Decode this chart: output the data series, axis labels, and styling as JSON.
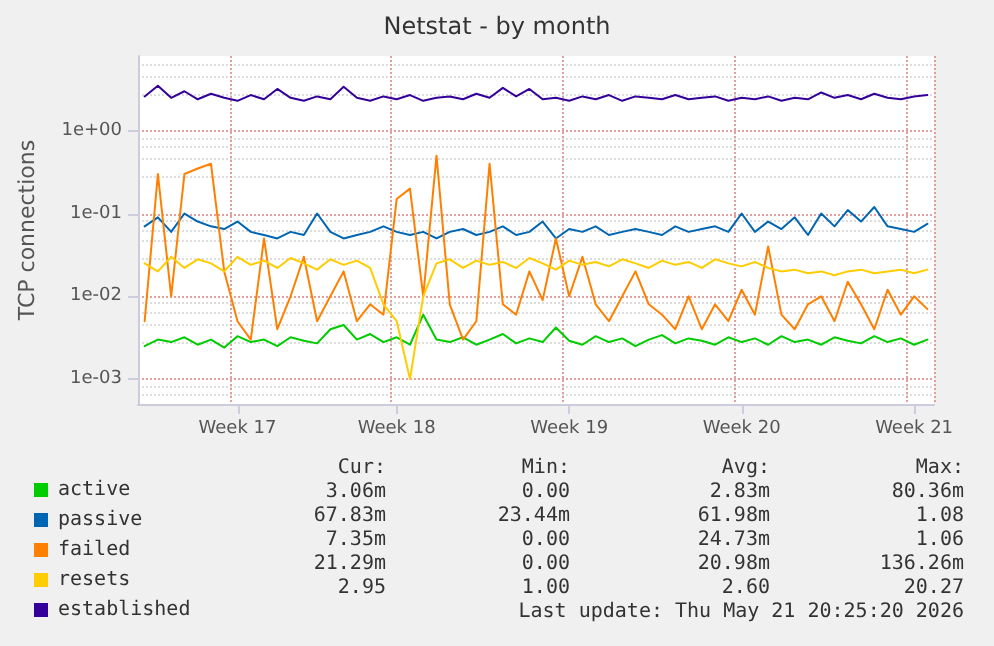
{
  "chart_data": {
    "type": "line",
    "title": "Netstat - by month",
    "ylabel": "TCP connections",
    "categories": [
      null,
      null,
      null,
      null,
      null,
      null,
      null,
      "Week 17",
      null,
      null,
      null,
      null,
      null,
      null,
      null,
      null,
      null,
      null,
      null,
      "Week 18",
      null,
      null,
      null,
      null,
      null,
      null,
      null,
      null,
      null,
      null,
      null,
      null,
      "Week 19",
      null,
      null,
      null,
      null,
      null,
      null,
      null,
      null,
      null,
      null,
      null,
      null,
      "Week 20",
      null,
      null,
      null,
      null,
      null,
      null,
      null,
      null,
      null,
      null,
      null,
      null,
      "Week 21",
      null
    ],
    "ylim": [
      0.0005,
      8
    ],
    "yticks": [
      {
        "value": 0.001,
        "label": "1e-03"
      },
      {
        "value": 0.01,
        "label": "1e-02"
      },
      {
        "value": 0.1,
        "label": "1e-01"
      },
      {
        "value": 1,
        "label": "1e+00"
      }
    ],
    "log": "y",
    "grid": true,
    "legend": "bottom left",
    "marker": "none",
    "series": [
      {
        "name": "active",
        "color": "#00cc00",
        "values": [
          0.0025,
          0.003,
          0.0028,
          0.0032,
          0.0026,
          0.003,
          0.0024,
          0.0033,
          0.0028,
          0.003,
          0.0025,
          0.0032,
          0.0029,
          0.0027,
          0.004,
          0.0045,
          0.003,
          0.0035,
          0.0028,
          0.0032,
          0.0026,
          0.006,
          0.003,
          0.0028,
          0.0032,
          0.0026,
          0.003,
          0.0035,
          0.0027,
          0.0031,
          0.0028,
          0.0042,
          0.0029,
          0.0026,
          0.0033,
          0.0028,
          0.0031,
          0.0025,
          0.003,
          0.0034,
          0.0027,
          0.0031,
          0.0029,
          0.0026,
          0.0032,
          0.0028,
          0.0031,
          0.0026,
          0.0033,
          0.0028,
          0.003,
          0.0026,
          0.0032,
          0.0029,
          0.0027,
          0.0033,
          0.0028,
          0.0031,
          0.0026,
          0.003
        ]
      },
      {
        "name": "passive",
        "color": "#0066b3",
        "values": [
          0.07,
          0.09,
          0.06,
          0.1,
          0.08,
          0.07,
          0.065,
          0.08,
          0.06,
          0.055,
          0.05,
          0.06,
          0.055,
          0.1,
          0.06,
          0.05,
          0.055,
          0.06,
          0.07,
          0.06,
          0.055,
          0.06,
          0.05,
          0.06,
          0.065,
          0.055,
          0.06,
          0.07,
          0.055,
          0.06,
          0.08,
          0.05,
          0.065,
          0.06,
          0.07,
          0.055,
          0.06,
          0.065,
          0.06,
          0.055,
          0.07,
          0.06,
          0.065,
          0.07,
          0.06,
          0.1,
          0.06,
          0.08,
          0.065,
          0.09,
          0.055,
          0.1,
          0.07,
          0.11,
          0.08,
          0.12,
          0.07,
          0.065,
          0.06,
          0.075
        ]
      },
      {
        "name": "failed",
        "color": "#ff8000",
        "values": [
          0.005,
          0.3,
          0.01,
          0.3,
          0.35,
          0.4,
          0.02,
          0.005,
          0.003,
          0.05,
          0.004,
          0.01,
          0.03,
          0.005,
          0.01,
          0.02,
          0.005,
          0.008,
          0.006,
          0.15,
          0.2,
          0.01,
          0.5,
          0.008,
          0.003,
          0.005,
          0.4,
          0.008,
          0.006,
          0.02,
          0.009,
          0.05,
          0.01,
          0.03,
          0.008,
          0.005,
          0.01,
          0.02,
          0.008,
          0.006,
          0.004,
          0.01,
          0.004,
          0.008,
          0.005,
          0.012,
          0.006,
          0.04,
          0.006,
          0.004,
          0.008,
          0.01,
          0.005,
          0.015,
          0.008,
          0.004,
          0.012,
          0.006,
          0.01,
          0.007
        ]
      },
      {
        "name": "resets",
        "color": "#ffcc00",
        "values": [
          0.025,
          0.02,
          0.03,
          0.022,
          0.028,
          0.025,
          0.02,
          0.03,
          0.024,
          0.027,
          0.022,
          0.029,
          0.025,
          0.021,
          0.028,
          0.024,
          0.027,
          0.022,
          0.008,
          0.005,
          0.001,
          0.01,
          0.025,
          0.028,
          0.022,
          0.027,
          0.024,
          0.026,
          0.022,
          0.029,
          0.025,
          0.021,
          0.027,
          0.024,
          0.026,
          0.023,
          0.028,
          0.025,
          0.022,
          0.027,
          0.024,
          0.026,
          0.022,
          0.028,
          0.025,
          0.023,
          0.026,
          0.022,
          0.02,
          0.021,
          0.019,
          0.02,
          0.018,
          0.02,
          0.021,
          0.019,
          0.02,
          0.021,
          0.019,
          0.021
        ]
      },
      {
        "name": "established",
        "color": "#330099",
        "values": [
          2.6,
          3.5,
          2.5,
          3,
          2.4,
          2.8,
          2.5,
          2.3,
          2.7,
          2.4,
          3.2,
          2.5,
          2.3,
          2.6,
          2.4,
          3.4,
          2.5,
          2.3,
          2.6,
          2.4,
          2.7,
          2.3,
          2.5,
          2.6,
          2.4,
          2.8,
          2.5,
          3.3,
          2.6,
          3.2,
          2.4,
          2.5,
          2.3,
          2.6,
          2.4,
          2.7,
          2.3,
          2.6,
          2.5,
          2.4,
          2.7,
          2.4,
          2.5,
          2.6,
          2.3,
          2.5,
          2.4,
          2.6,
          2.3,
          2.5,
          2.4,
          2.9,
          2.5,
          2.7,
          2.4,
          2.8,
          2.5,
          2.4,
          2.6,
          2.7
        ]
      }
    ],
    "annotations": [
      "Cur:",
      "Min:",
      "Avg:",
      "Max:",
      "3.06m",
      "0.00",
      "2.83m",
      "80.36m",
      "67.83m",
      "23.44m",
      "61.98m",
      "1.08",
      "7.35m",
      "0.00",
      "24.73m",
      "1.06",
      "21.29m",
      "0.00",
      "20.98m",
      "136.26m",
      "2.95",
      "1.00",
      "2.60",
      "20.27",
      "Last update: Thu May 21 20:25:20 2026"
    ]
  }
}
